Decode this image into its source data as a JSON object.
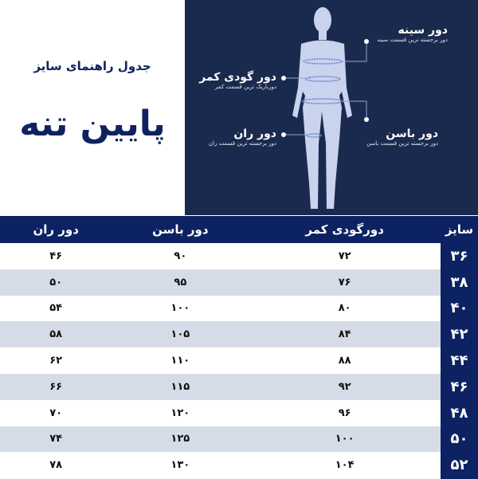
{
  "header": {
    "subtitle": "جدول راهنمای سایز",
    "title": "پایین تنه"
  },
  "figure": {
    "chest": {
      "title": "دور سینه",
      "desc": "دور برجسته ترین قسمت سینه"
    },
    "waist": {
      "title": "دور گودی کمر",
      "desc": "دورباریک ترین قسمت کمر"
    },
    "hip": {
      "title": "دور باسن",
      "desc": "دور برجسته ترین قسمت باسن"
    },
    "thigh": {
      "title": "دور ران",
      "desc": "دور برجسته ترین قسمت ران"
    }
  },
  "table": {
    "columns": [
      "سایز",
      "دورگودی کمر",
      "دور باسن",
      "دور ران"
    ],
    "rows": [
      [
        "۳۶",
        "۷۲",
        "۹۰",
        "۴۶"
      ],
      [
        "۳۸",
        "۷۶",
        "۹۵",
        "۵۰"
      ],
      [
        "۴۰",
        "۸۰",
        "۱۰۰",
        "۵۴"
      ],
      [
        "۴۲",
        "۸۴",
        "۱۰۵",
        "۵۸"
      ],
      [
        "۴۴",
        "۸۸",
        "۱۱۰",
        "۶۲"
      ],
      [
        "۴۶",
        "۹۲",
        "۱۱۵",
        "۶۶"
      ],
      [
        "۴۸",
        "۹۶",
        "۱۲۰",
        "۷۰"
      ],
      [
        "۵۰",
        "۱۰۰",
        "۱۲۵",
        "۷۴"
      ],
      [
        "۵۲",
        "۱۰۴",
        "۱۳۰",
        "۷۸"
      ]
    ]
  },
  "colors": {
    "navy": "#0d2262",
    "panel": "#1a2a4e",
    "stripe": "#d5dce7"
  }
}
